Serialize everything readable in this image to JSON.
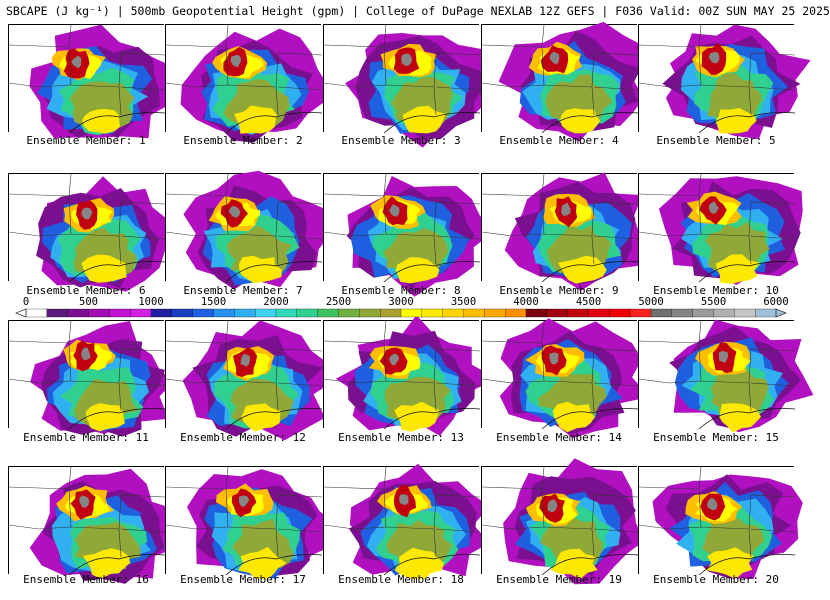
{
  "header": {
    "title": "SBCAPE (J kg⁻¹) | 500mb Geopotential Height (gpm) | College of DuPage NEXLAB 12Z GEFS | F036 Valid: 00Z SUN MAY 25 2025"
  },
  "colorbar": {
    "ticks": [
      "0",
      "500",
      "1000",
      "1500",
      "2000",
      "2500",
      "3000",
      "3500",
      "4000",
      "4500",
      "5000",
      "5500",
      "6000"
    ],
    "colors": [
      "#ffffff",
      "#5a1a7a",
      "#7a1090",
      "#a010b0",
      "#c010d0",
      "#d020e0",
      "#2020a0",
      "#1840c0",
      "#1e60e0",
      "#2890f0",
      "#30b0f0",
      "#40d0f0",
      "#30d8b8",
      "#30d090",
      "#40c060",
      "#70b040",
      "#90a838",
      "#a8a030",
      "#ffff00",
      "#ffe800",
      "#ffd400",
      "#ffbe00",
      "#ffa800",
      "#ff9000",
      "#7a0010",
      "#a00010",
      "#c00010",
      "#e00010",
      "#f00000",
      "#ff2020",
      "#707070",
      "#858585",
      "#9a9a9a",
      "#b0b0b0",
      "#c5c5c5",
      "#a0c0d8"
    ]
  },
  "members": [
    {
      "label": "Ensemble Member: 1"
    },
    {
      "label": "Ensemble Member: 2"
    },
    {
      "label": "Ensemble Member: 3"
    },
    {
      "label": "Ensemble Member: 4"
    },
    {
      "label": "Ensemble Member: 5"
    },
    {
      "label": "Ensemble Member: 6"
    },
    {
      "label": "Ensemble Member: 7"
    },
    {
      "label": "Ensemble Member: 8"
    },
    {
      "label": "Ensemble Member: 9"
    },
    {
      "label": "Ensemble Member: 10"
    },
    {
      "label": "Ensemble Member: 11"
    },
    {
      "label": "Ensemble Member: 12"
    },
    {
      "label": "Ensemble Member: 13"
    },
    {
      "label": "Ensemble Member: 14"
    },
    {
      "label": "Ensemble Member: 15"
    },
    {
      "label": "Ensemble Member: 16"
    },
    {
      "label": "Ensemble Member: 17"
    },
    {
      "label": "Ensemble Member: 18"
    },
    {
      "label": "Ensemble Member: 19"
    },
    {
      "label": "Ensemble Member: 20"
    }
  ]
}
